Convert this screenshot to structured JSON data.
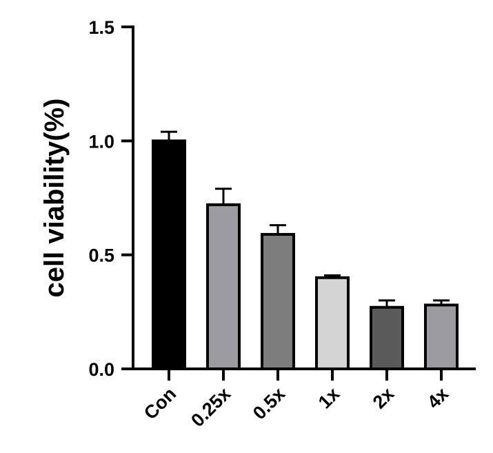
{
  "chart_data": {
    "type": "bar",
    "title": "",
    "xlabel": "",
    "ylabel": "cell viability(%)",
    "ylim": [
      0,
      1.5
    ],
    "yticks": [
      "0.0",
      "0.5",
      "1.0",
      "1.5"
    ],
    "categories": [
      "Con",
      "0.25x",
      "0.5x",
      "1x",
      "2x",
      "4x"
    ],
    "values": [
      1.0,
      0.72,
      0.59,
      0.4,
      0.27,
      0.28
    ],
    "errors": [
      0.04,
      0.07,
      0.04,
      0.01,
      0.03,
      0.02
    ],
    "colors": [
      "#000000",
      "#9b9ba1",
      "#7d7d7d",
      "#d4d4d4",
      "#5a5a5a",
      "#9b9ba1"
    ],
    "grid": false,
    "legend": "none"
  }
}
